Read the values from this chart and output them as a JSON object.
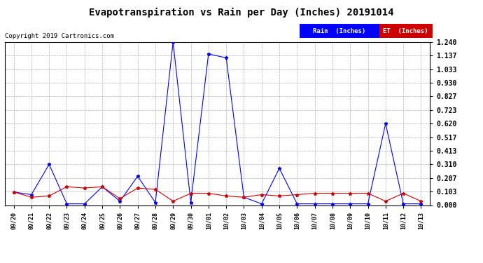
{
  "title": "Evapotranspiration vs Rain per Day (Inches) 20191014",
  "copyright": "Copyright 2019 Cartronics.com",
  "legend_rain": "Rain  (Inches)",
  "legend_et": "ET  (Inches)",
  "rain_color": "#0000ff",
  "et_color": "#cc0000",
  "ylim": [
    0.0,
    1.24
  ],
  "yticks": [
    0.0,
    0.103,
    0.207,
    0.31,
    0.413,
    0.517,
    0.62,
    0.723,
    0.827,
    0.93,
    1.033,
    1.137,
    1.24
  ],
  "x_labels": [
    "09/20",
    "09/21",
    "09/22",
    "09/23",
    "09/24",
    "09/25",
    "09/26",
    "09/27",
    "09/28",
    "09/29",
    "09/30",
    "10/01",
    "10/02",
    "10/03",
    "10/04",
    "10/05",
    "10/06",
    "10/07",
    "10/08",
    "10/09",
    "10/10",
    "10/11",
    "10/12",
    "10/13"
  ],
  "rain": [
    0.1,
    0.08,
    0.31,
    0.01,
    0.01,
    0.14,
    0.03,
    0.22,
    0.02,
    1.24,
    0.02,
    1.15,
    1.12,
    0.06,
    0.01,
    0.28,
    0.01,
    0.01,
    0.01,
    0.01,
    0.01,
    0.62,
    0.01,
    0.01
  ],
  "et": [
    0.1,
    0.06,
    0.07,
    0.14,
    0.13,
    0.14,
    0.05,
    0.13,
    0.12,
    0.03,
    0.09,
    0.09,
    0.07,
    0.06,
    0.08,
    0.07,
    0.08,
    0.09,
    0.09,
    0.09,
    0.09,
    0.03,
    0.09,
    0.03
  ],
  "background_color": "#ffffff",
  "grid_color": "#b0b0b0"
}
